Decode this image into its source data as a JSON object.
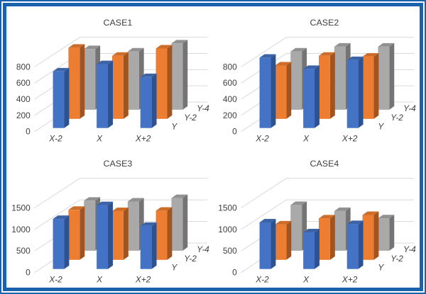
{
  "frame": {
    "border_color": "#1961AC",
    "background": "#ffffff"
  },
  "colors": {
    "text": "#404040",
    "gridline": "#D9D9D9",
    "series_palette": {
      "blue": {
        "front": "#4472C4",
        "top": "#3B63A5",
        "side": "#2E5190"
      },
      "orange": {
        "front": "#ED7D31",
        "top": "#CE6D2A",
        "side": "#9E5423"
      },
      "gray": {
        "front": "#A9A9A9",
        "top": "#919191",
        "side": "#747474"
      }
    }
  },
  "chart_data": [
    {
      "type": "bar",
      "variant": "3d-bar",
      "title": "CASE1",
      "categories": [
        "X-2",
        "X",
        "X+2"
      ],
      "depth_labels": [
        "Y",
        "Y-2",
        "Y-4"
      ],
      "series": [
        {
          "name": "Y",
          "color": "blue",
          "values": [
            700,
            790,
            630
          ]
        },
        {
          "name": "Y-2",
          "color": "orange",
          "values": [
            880,
            780,
            870
          ]
        },
        {
          "name": "Y-4",
          "color": "gray",
          "values": [
            750,
            720,
            820
          ]
        }
      ],
      "ylim": [
        0,
        800
      ],
      "yticks": [
        0,
        200,
        400,
        600,
        800
      ],
      "grid": true,
      "legend": "none",
      "xlabel": "",
      "ylabel": ""
    },
    {
      "type": "bar",
      "variant": "3d-bar",
      "title": "CASE2",
      "categories": [
        "X-2",
        "X",
        "X+2"
      ],
      "depth_labels": [
        "Y",
        "Y-2",
        "Y-4"
      ],
      "series": [
        {
          "name": "Y",
          "color": "blue",
          "values": [
            870,
            730,
            840
          ]
        },
        {
          "name": "Y-2",
          "color": "orange",
          "values": [
            660,
            780,
            770
          ]
        },
        {
          "name": "Y-4",
          "color": "gray",
          "values": [
            720,
            780,
            780
          ]
        }
      ],
      "ylim": [
        0,
        800
      ],
      "yticks": [
        0,
        200,
        400,
        600,
        800
      ],
      "grid": true,
      "legend": "none",
      "xlabel": "",
      "ylabel": ""
    },
    {
      "type": "bar",
      "variant": "3d-bar",
      "title": "CASE3",
      "categories": [
        "X-2",
        "X",
        "X+2"
      ],
      "depth_labels": [
        "Y",
        "Y-2",
        "Y-4"
      ],
      "series": [
        {
          "name": "Y",
          "color": "blue",
          "values": [
            1160,
            1480,
            1000
          ]
        },
        {
          "name": "Y-2",
          "color": "orange",
          "values": [
            1160,
            1130,
            1140
          ]
        },
        {
          "name": "Y-4",
          "color": "gray",
          "values": [
            1160,
            1140,
            1220
          ]
        }
      ],
      "ylim": [
        0,
        1500
      ],
      "yticks": [
        0,
        500,
        1000,
        1500
      ],
      "grid": true,
      "legend": "none",
      "xlabel": "",
      "ylabel": ""
    },
    {
      "type": "bar",
      "variant": "3d-bar",
      "title": "CASE4",
      "categories": [
        "X-2",
        "X",
        "X+2"
      ],
      "depth_labels": [
        "Y",
        "Y-2",
        "Y-4"
      ],
      "series": [
        {
          "name": "Y",
          "color": "blue",
          "values": [
            1080,
            850,
            1040
          ]
        },
        {
          "name": "Y-2",
          "color": "orange",
          "values": [
            820,
            960,
            1040
          ]
        },
        {
          "name": "Y-4",
          "color": "gray",
          "values": [
            1060,
            920,
            750
          ]
        }
      ],
      "ylim": [
        0,
        1500
      ],
      "yticks": [
        0,
        500,
        1000,
        1500
      ],
      "grid": true,
      "legend": "none",
      "xlabel": "",
      "ylabel": ""
    }
  ]
}
